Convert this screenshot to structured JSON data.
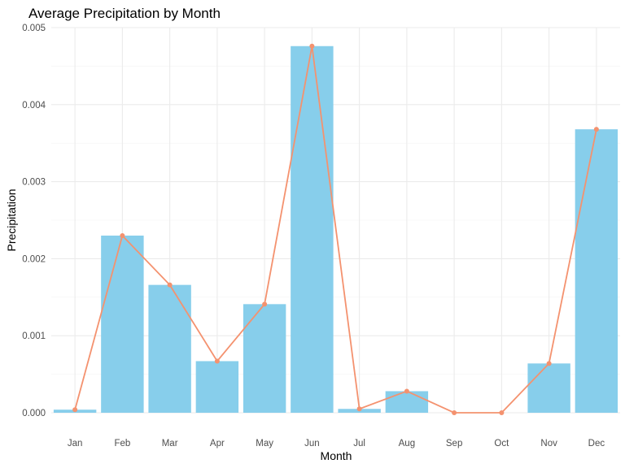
{
  "chart_data": {
    "type": "bar",
    "title": "Average Precipitation by Month",
    "xlabel": "Month",
    "ylabel": "Precipitation",
    "categories": [
      "Jan",
      "Feb",
      "Mar",
      "Apr",
      "May",
      "Jun",
      "Jul",
      "Aug",
      "Sep",
      "Oct",
      "Nov",
      "Dec"
    ],
    "series": [
      {
        "type": "bar",
        "color": "#87ceeb",
        "values": [
          4e-05,
          0.0023,
          0.00166,
          0.00067,
          0.00141,
          0.00476,
          5e-05,
          0.00028,
          0.0,
          0.0,
          0.00064,
          0.00368
        ]
      },
      {
        "type": "line",
        "markers": true,
        "color": "#f4926f",
        "values": [
          4e-05,
          0.0023,
          0.00166,
          0.00067,
          0.00141,
          0.00476,
          5e-05,
          0.00028,
          0.0,
          0.0,
          0.00064,
          0.00368
        ]
      }
    ],
    "ylim": [
      0,
      0.005
    ],
    "yticks": [
      "0.000",
      "0.001",
      "0.002",
      "0.003",
      "0.004",
      "0.005"
    ],
    "grid": true,
    "legend": "none"
  }
}
